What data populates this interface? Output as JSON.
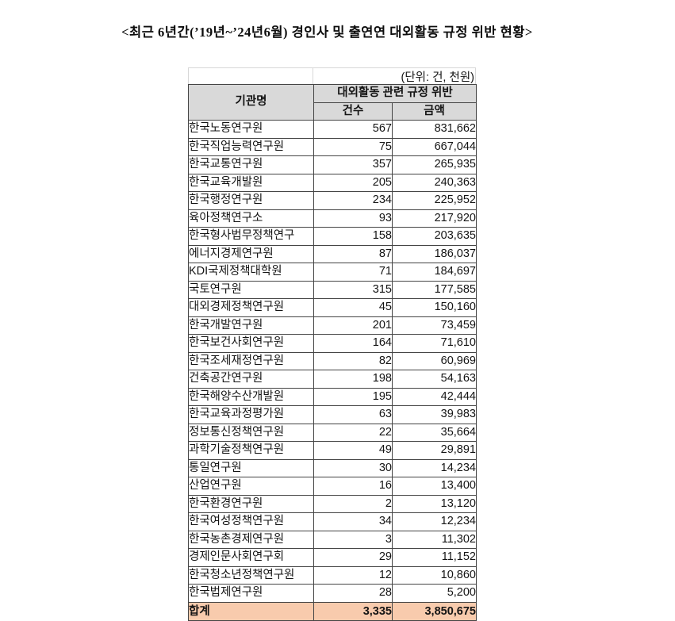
{
  "title": "<최근 6년간(’19년~’24년6월) 경인사 및 출연연 대외활동 규정 위반 현황>",
  "unit_note": "(단위: 건, 천원)",
  "table": {
    "col_institution": "기관명",
    "col_group": "대외활동 관련 규정 위반",
    "col_count": "건수",
    "col_amount": "금액",
    "rows": [
      {
        "name": "한국노동연구원",
        "count": "567",
        "amount": "831,662"
      },
      {
        "name": "한국직업능력연구원",
        "count": "75",
        "amount": "667,044"
      },
      {
        "name": "한국교통연구원",
        "count": "357",
        "amount": "265,935"
      },
      {
        "name": "한국교육개발원",
        "count": "205",
        "amount": "240,363"
      },
      {
        "name": "한국행정연구원",
        "count": "234",
        "amount": "225,952"
      },
      {
        "name": "육아정책연구소",
        "count": "93",
        "amount": "217,920"
      },
      {
        "name": "한국형사법무정책연구",
        "count": "158",
        "amount": "203,635"
      },
      {
        "name": "에너지경제연구원",
        "count": "87",
        "amount": "186,037"
      },
      {
        "name": "KDI국제정책대학원",
        "count": "71",
        "amount": "184,697"
      },
      {
        "name": "국토연구원",
        "count": "315",
        "amount": "177,585"
      },
      {
        "name": "대외경제정책연구원",
        "count": "45",
        "amount": "150,160"
      },
      {
        "name": "한국개발연구원",
        "count": "201",
        "amount": "73,459"
      },
      {
        "name": "한국보건사회연구원",
        "count": "164",
        "amount": "71,610"
      },
      {
        "name": "한국조세재정연구원",
        "count": "82",
        "amount": "60,969"
      },
      {
        "name": "건축공간연구원",
        "count": "198",
        "amount": "54,163"
      },
      {
        "name": "한국해양수산개발원",
        "count": "195",
        "amount": "42,444"
      },
      {
        "name": "한국교육과정평가원",
        "count": "63",
        "amount": "39,983"
      },
      {
        "name": "정보통신정책연구원",
        "count": "22",
        "amount": "35,664"
      },
      {
        "name": "과학기술정책연구원",
        "count": "49",
        "amount": "29,891"
      },
      {
        "name": "통일연구원",
        "count": "30",
        "amount": "14,234"
      },
      {
        "name": "산업연구원",
        "count": "16",
        "amount": "13,400"
      },
      {
        "name": "한국환경연구원",
        "count": "2",
        "amount": "13,120"
      },
      {
        "name": "한국여성정책연구원",
        "count": "34",
        "amount": "12,234"
      },
      {
        "name": "한국농촌경제연구원",
        "count": "3",
        "amount": "11,302"
      },
      {
        "name": "경제인문사회연구회",
        "count": "29",
        "amount": "11,152"
      },
      {
        "name": "한국청소년정책연구원",
        "count": "12",
        "amount": "10,860"
      },
      {
        "name": "한국법제연구원",
        "count": "28",
        "amount": "5,200"
      }
    ],
    "total": {
      "label": "합계",
      "count": "3,335",
      "amount": "3,850,675"
    }
  },
  "colors": {
    "header_bg": "#D9D9D9",
    "total_bg": "#F8CBAD",
    "border": "#454545"
  }
}
